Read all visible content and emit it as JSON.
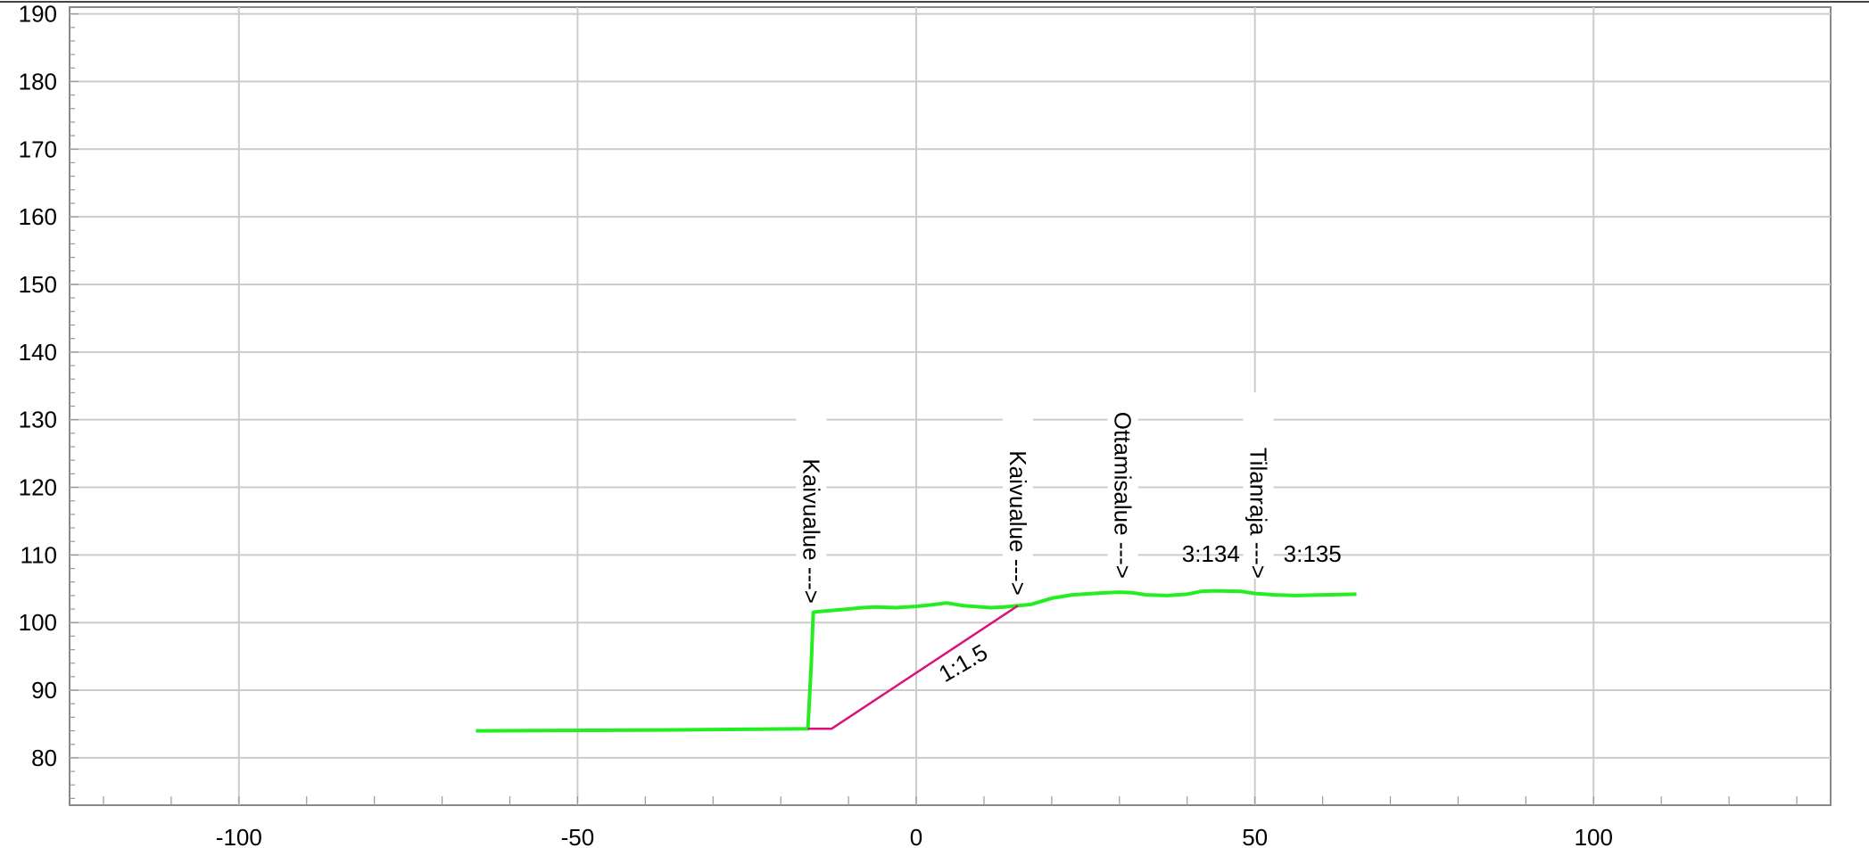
{
  "chart_data": {
    "type": "line",
    "title": "",
    "xlabel": "",
    "ylabel": "",
    "xlim": [
      -125,
      135
    ],
    "ylim": [
      73,
      191
    ],
    "x_ticks": [
      -100,
      -50,
      0,
      50,
      100
    ],
    "x_tick_labels": [
      "-100",
      "-50",
      "0",
      "50",
      "100"
    ],
    "y_ticks": [
      80,
      90,
      100,
      110,
      120,
      130,
      140,
      150,
      160,
      170,
      180,
      190
    ],
    "y_tick_labels": [
      "80",
      "90",
      "100",
      "110",
      "120",
      "130",
      "140",
      "150",
      "160",
      "170",
      "180",
      "190"
    ],
    "grid": true,
    "legend": "none",
    "series": [
      {
        "color": "#22ee22",
        "x": [
          -65,
          -40,
          -16,
          -15.5,
          -15.2,
          -14.8,
          -10,
          -8,
          -6,
          -3,
          0,
          2,
          4.5,
          7,
          11,
          13,
          15,
          17,
          20,
          23,
          26,
          28,
          30,
          32,
          34,
          37,
          40,
          42,
          44,
          48,
          50,
          53,
          56,
          60,
          65
        ],
        "y": [
          84,
          84.1,
          84.3,
          94,
          101.5,
          101.6,
          102,
          102.2,
          102.3,
          102.2,
          102.4,
          102.6,
          102.9,
          102.5,
          102.2,
          102.3,
          102.5,
          102.7,
          103.6,
          104.1,
          104.3,
          104.4,
          104.5,
          104.4,
          104.1,
          104,
          104.2,
          104.6,
          104.7,
          104.6,
          104.3,
          104.1,
          104,
          104.1,
          104.2
        ]
      },
      {
        "color": "#dd1177",
        "x": [
          -16,
          -12.5,
          15
        ],
        "y": [
          84.3,
          84.3,
          102.5
        ]
      }
    ],
    "annotations": [
      {
        "text": "Kaivualue --->",
        "x": -15.5,
        "y": 102.8,
        "rotation": 90
      },
      {
        "text": "Kaivualue --->",
        "x": 15,
        "y": 104,
        "rotation": 90
      },
      {
        "text": "Ottamisalue --->",
        "x": 30.5,
        "y": 106.5,
        "rotation": 90
      },
      {
        "text": "Tilanraja --->",
        "x": 50.5,
        "y": 106.5,
        "rotation": 90
      },
      {
        "text": "3:134",
        "x": 43.5,
        "y": 109
      },
      {
        "text": "3:135",
        "x": 58.5,
        "y": 109
      },
      {
        "text": "1:1.5",
        "x": 7.5,
        "y": 93,
        "rotation": -30
      }
    ]
  }
}
